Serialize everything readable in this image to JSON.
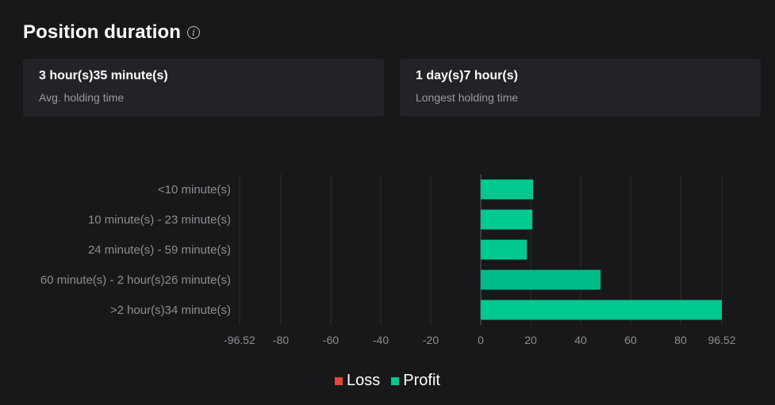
{
  "header": {
    "title": "Position duration",
    "info_icon": "info-icon"
  },
  "cards": [
    {
      "value": "3 hour(s)35 minute(s)",
      "label": "Avg. holding time"
    },
    {
      "value": "1 day(s)7 hour(s)",
      "label": "Longest holding time"
    }
  ],
  "colors": {
    "profit": "#00c98f",
    "loss": "#e8443c",
    "background": "#18181a",
    "card": "#222327"
  },
  "chart_data": {
    "type": "bar",
    "orientation": "horizontal",
    "categories": [
      "<10 minute(s)",
      "10 minute(s) - 23 minute(s)",
      "24 minute(s) - 59 minute(s)",
      "60 minute(s) - 2 hour(s)26 minute(s)",
      ">2 hour(s)34 minute(s)"
    ],
    "series": [
      {
        "name": "Loss",
        "values": [
          0,
          0,
          0,
          0,
          0
        ]
      },
      {
        "name": "Profit",
        "values": [
          21,
          20.7,
          18.5,
          48,
          96.52
        ]
      }
    ],
    "xlim": [
      -96.52,
      96.52
    ],
    "xticks": [
      "-96.52",
      "-80",
      "-60",
      "-40",
      "-20",
      "0",
      "20",
      "40",
      "60",
      "80",
      "96.52"
    ],
    "grid": true,
    "legend_position": "bottom"
  }
}
